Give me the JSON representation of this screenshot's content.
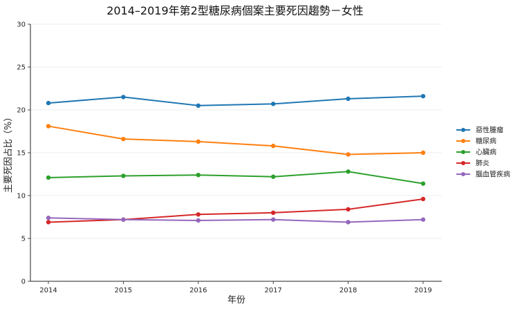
{
  "chart_data": {
    "type": "line",
    "title": "2014–2019年第2型糖尿病個案主要死因趨勢－女性",
    "xlabel": "年份",
    "ylabel": "主要死因占比（%）",
    "x": [
      "2014",
      "2015",
      "2016",
      "2017",
      "2018",
      "2019"
    ],
    "ylim": [
      0,
      30
    ],
    "yticks": [
      "0",
      "5",
      "10",
      "15",
      "20",
      "25",
      "30"
    ],
    "grid": "horizontal",
    "legend_position": "right",
    "series": [
      {
        "name": "惡性腫瘤",
        "color": "#1f77b4",
        "values": [
          20.8,
          21.5,
          20.5,
          20.7,
          21.3,
          21.6
        ]
      },
      {
        "name": "糖尿病",
        "color": "#ff7f0e",
        "values": [
          18.1,
          16.6,
          16.3,
          15.8,
          14.8,
          15.0
        ]
      },
      {
        "name": "心臟病",
        "color": "#2ca02c",
        "values": [
          12.1,
          12.3,
          12.4,
          12.2,
          12.8,
          11.4
        ]
      },
      {
        "name": "肺炎",
        "color": "#d62728",
        "values": [
          6.9,
          7.2,
          7.8,
          8.0,
          8.4,
          9.6
        ]
      },
      {
        "name": "腦血管疾病",
        "color": "#9467bd",
        "values": [
          7.4,
          7.2,
          7.1,
          7.2,
          6.9,
          7.2
        ]
      }
    ]
  }
}
